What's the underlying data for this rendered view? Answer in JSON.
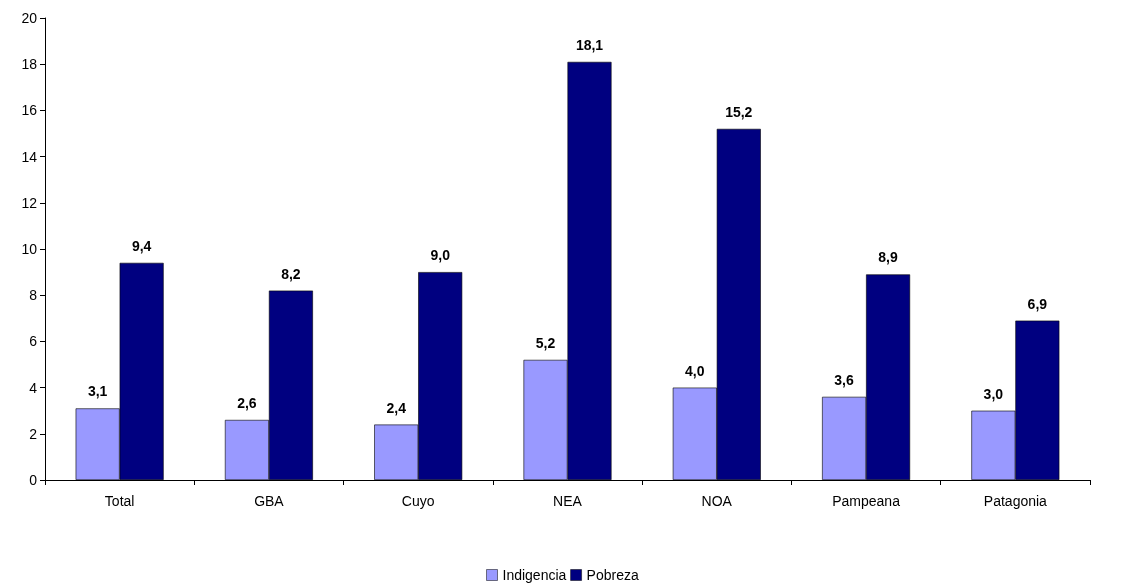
{
  "chart_data": {
    "type": "bar",
    "categories": [
      "Total",
      "GBA",
      "Cuyo",
      "NEA",
      "NOA",
      "Pampeana",
      "Patagonia"
    ],
    "series": [
      {
        "name": "Indigencia",
        "color": "#9999ff",
        "values": [
          3.1,
          2.6,
          2.4,
          5.2,
          4.0,
          3.6,
          3.0
        ],
        "value_labels": [
          "3,1",
          "2,6",
          "2,4",
          "5,2",
          "4,0",
          "3,6",
          "3,0"
        ]
      },
      {
        "name": "Pobreza",
        "color": "#000080",
        "values": [
          9.4,
          8.2,
          9.0,
          18.1,
          15.2,
          8.9,
          6.9
        ],
        "value_labels": [
          "9,4",
          "8,2",
          "9,0",
          "18,1",
          "15,2",
          "8,9",
          "6,9"
        ]
      }
    ],
    "ylim": [
      0,
      20
    ],
    "yticks": [
      0,
      2,
      4,
      6,
      8,
      10,
      12,
      14,
      16,
      18,
      20
    ],
    "grid": false,
    "legend": "bottom"
  }
}
